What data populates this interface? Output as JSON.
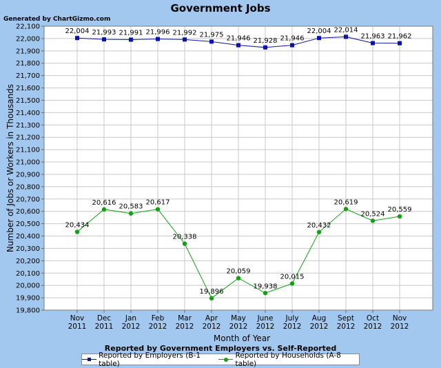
{
  "watermark": "Generated by ChartGizmo.com",
  "colors": {
    "employers": "#0b13a8",
    "households": "#14a014",
    "plot_bg": "#ffffff",
    "grid": "#c8c8c8"
  },
  "chart_data": {
    "type": "line",
    "title": "Government Jobs",
    "subtitle": "Reported by Government Employers vs. Self-Reported",
    "xlabel": "Month of Year",
    "ylabel": "Number of Jobs or Workers in Thousands",
    "categories": [
      [
        "Nov",
        "2011"
      ],
      [
        "Dec",
        "2011"
      ],
      [
        "Jan",
        "2012"
      ],
      [
        "Feb",
        "2012"
      ],
      [
        "Mar",
        "2012"
      ],
      [
        "Apr",
        "2012"
      ],
      [
        "May",
        "2012"
      ],
      [
        "June",
        "2012"
      ],
      [
        "July",
        "2012"
      ],
      [
        "Aug",
        "2012"
      ],
      [
        "Sept",
        "2012"
      ],
      [
        "Oct",
        "2012"
      ],
      [
        "Nov",
        "2012"
      ]
    ],
    "ylim": [
      19800,
      22100
    ],
    "ytick_step": 100,
    "grid": true,
    "legend_position": "bottom",
    "series": [
      {
        "name": "Reported by Employers (B-1 table)",
        "marker": "square",
        "values": [
          22004,
          21993,
          21991,
          21996,
          21992,
          21975,
          21946,
          21928,
          21946,
          22004,
          22014,
          21963,
          21962
        ],
        "labels": [
          "22,004",
          "21,993",
          "21,991",
          "21,996",
          "21,992",
          "21,975",
          "21,946",
          "21,928",
          "21,946",
          "22,004",
          "22,014",
          "21,963",
          "21,962"
        ]
      },
      {
        "name": "Reported by Households (A-8 table)",
        "marker": "circle",
        "values": [
          20434,
          20616,
          20583,
          20617,
          20338,
          19896,
          20059,
          19938,
          20015,
          20432,
          20619,
          20524,
          20559
        ],
        "labels": [
          "20,434",
          "20,616",
          "20,583",
          "20,617",
          "20,338",
          "19,896",
          "20,059",
          "19,938",
          "20,015",
          "20,432",
          "20,619",
          "20,524",
          "20,559"
        ]
      }
    ]
  }
}
